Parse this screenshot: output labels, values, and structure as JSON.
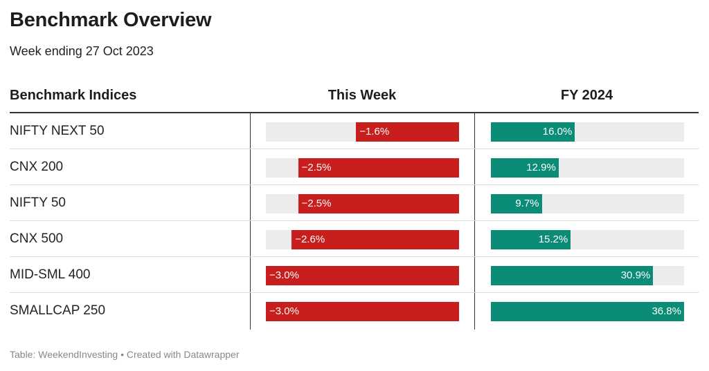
{
  "title": "Benchmark Overview",
  "subtitle": "Week ending 27 Oct 2023",
  "footer": "Table: WeekendInvesting • Created with Datawrapper",
  "colors": {
    "negative": "#c81e1e",
    "positive": "#0b8c76",
    "track": "#ececec"
  },
  "chart_data": {
    "type": "table",
    "columns": [
      "Benchmark Indices",
      "This Week",
      "FY 2024"
    ],
    "week_range": [
      -3.0,
      0
    ],
    "fy_range": [
      0,
      36.8
    ],
    "rows": [
      {
        "name": "NIFTY NEXT 50",
        "week": -1.6,
        "week_label": "−1.6%",
        "fy": 16.0,
        "fy_label": "16.0%"
      },
      {
        "name": "CNX 200",
        "week": -2.5,
        "week_label": "−2.5%",
        "fy": 12.9,
        "fy_label": "12.9%"
      },
      {
        "name": "NIFTY 50",
        "week": -2.5,
        "week_label": "−2.5%",
        "fy": 9.7,
        "fy_label": "9.7%"
      },
      {
        "name": "CNX 500",
        "week": -2.6,
        "week_label": "−2.6%",
        "fy": 15.2,
        "fy_label": "15.2%"
      },
      {
        "name": "MID-SML 400",
        "week": -3.0,
        "week_label": "−3.0%",
        "fy": 30.9,
        "fy_label": "30.9%"
      },
      {
        "name": "SMALLCAP 250",
        "week": -3.0,
        "week_label": "−3.0%",
        "fy": 36.8,
        "fy_label": "36.8%"
      }
    ]
  }
}
